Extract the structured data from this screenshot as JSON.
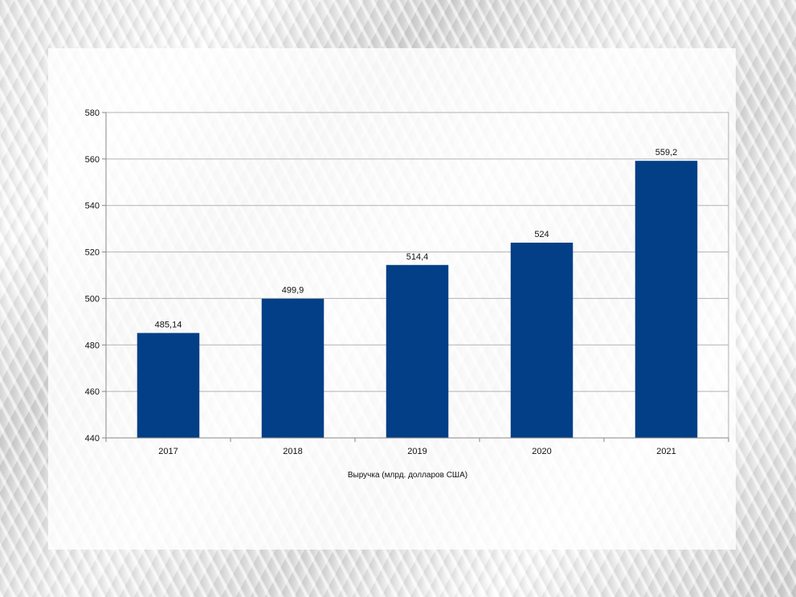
{
  "chart_data": {
    "type": "bar",
    "categories": [
      "2017",
      "2018",
      "2019",
      "2020",
      "2021"
    ],
    "values": [
      485.14,
      499.9,
      514.4,
      524,
      559.2
    ],
    "data_labels": [
      "485,14",
      "499,9",
      "514,4",
      "524",
      "559,2"
    ],
    "title": "",
    "xlabel": "Выручка (млрд. долларов США)",
    "ylabel": "",
    "ylim": [
      440,
      580
    ],
    "yticks": [
      440,
      460,
      480,
      500,
      520,
      540,
      560,
      580
    ],
    "grid": true,
    "bar_color": "#023f87"
  }
}
